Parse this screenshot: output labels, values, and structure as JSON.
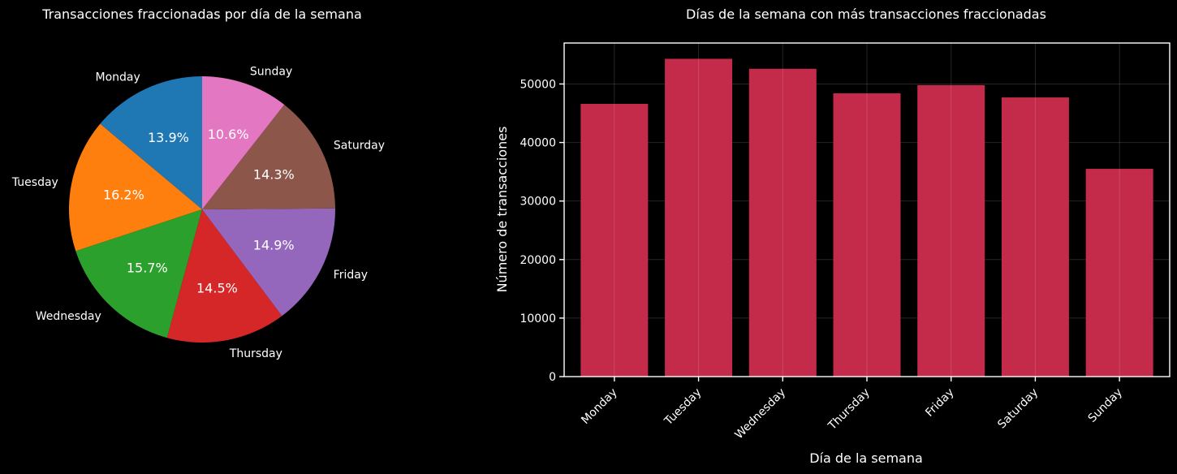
{
  "chart_data": [
    {
      "type": "pie",
      "title": "Transacciones fraccionadas por día de la semana",
      "start_angle_deg": 90,
      "direction": "counterclockwise",
      "slices": [
        {
          "label": "Monday",
          "value": 13.9,
          "pct_label": "13.9%",
          "color": "#1f77b4"
        },
        {
          "label": "Tuesday",
          "value": 16.2,
          "pct_label": "16.2%",
          "color": "#ff7f0e"
        },
        {
          "label": "Wednesday",
          "value": 15.7,
          "pct_label": "15.7%",
          "color": "#2ca02c"
        },
        {
          "label": "Thursday",
          "value": 14.5,
          "pct_label": "14.5%",
          "color": "#d62728"
        },
        {
          "label": "Friday",
          "value": 14.9,
          "pct_label": "14.9%",
          "color": "#9467bd"
        },
        {
          "label": "Saturday",
          "value": 14.3,
          "pct_label": "14.3%",
          "color": "#8c564b"
        },
        {
          "label": "Sunday",
          "value": 10.6,
          "pct_label": "10.6%",
          "color": "#e377c2"
        }
      ]
    },
    {
      "type": "bar",
      "title": "Días de la semana con más transacciones fraccionadas",
      "xlabel": "Día de la semana",
      "ylabel": "Número de transacciones",
      "categories": [
        "Monday",
        "Tuesday",
        "Wednesday",
        "Thursday",
        "Friday",
        "Saturday",
        "Sunday"
      ],
      "values": [
        46600,
        54300,
        52600,
        48400,
        49800,
        47700,
        35500
      ],
      "ylim": [
        0,
        57000
      ],
      "yticks": [
        0,
        10000,
        20000,
        30000,
        40000,
        50000
      ],
      "grid": true,
      "bar_color": "#c42a4a",
      "tick_rotation_deg": 45
    }
  ]
}
